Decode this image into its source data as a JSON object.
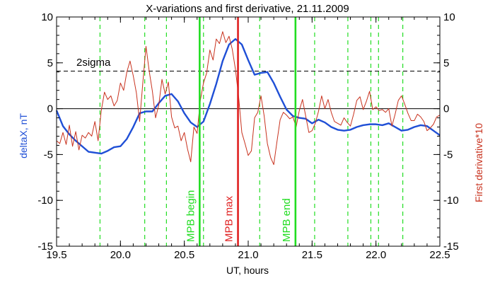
{
  "chart_data": {
    "type": "line",
    "title": "X-variations and first derivative, 21.11.2009",
    "xlabel": "UT, hours",
    "ylabel_left": "deltaX, nT",
    "ylabel_right": "First derivative*10",
    "xlim": [
      19.5,
      22.5
    ],
    "ylim": [
      -15,
      10
    ],
    "xticks": [
      "19.5",
      "20.0",
      "20.5",
      "21.0",
      "21.5",
      "22.0",
      "22.5"
    ],
    "yticks": [
      "-15",
      "-10",
      "-5",
      "0",
      "5",
      "10"
    ],
    "colors": {
      "deltaX": "#1f4fd6",
      "derivative": "#c8321e",
      "markers": "#22dd22",
      "max": "#e02020",
      "axes": "#000000"
    },
    "sigma": {
      "label": "2sigma",
      "value": 4.1
    },
    "zero_line": 0,
    "dashed_markers_x": [
      19.84,
      20.19,
      20.36,
      20.65,
      21.09,
      21.52,
      21.78,
      21.96,
      22.02,
      22.21
    ],
    "markers": [
      {
        "label": "MPB begin",
        "x": 20.62,
        "color": "#22dd22"
      },
      {
        "label": "MPB max",
        "x": 20.92,
        "color": "#e02020"
      },
      {
        "label": "MPB end",
        "x": 21.37,
        "color": "#22dd22"
      }
    ],
    "series": [
      {
        "name": "deltaX, nT",
        "axis": "left",
        "color": "#1f4fd6",
        "x": [
          19.5,
          19.55,
          19.6,
          19.65,
          19.7,
          19.75,
          19.8,
          19.85,
          19.9,
          19.95,
          20.0,
          20.05,
          20.1,
          20.15,
          20.2,
          20.25,
          20.3,
          20.35,
          20.4,
          20.45,
          20.5,
          20.55,
          20.6,
          20.65,
          20.7,
          20.75,
          20.8,
          20.85,
          20.9,
          20.95,
          21.0,
          21.05,
          21.1,
          21.15,
          21.2,
          21.25,
          21.3,
          21.35,
          21.4,
          21.45,
          21.5,
          21.55,
          21.6,
          21.65,
          21.7,
          21.75,
          21.8,
          21.85,
          21.9,
          21.95,
          22.0,
          22.05,
          22.1,
          22.15,
          22.2,
          22.25,
          22.3,
          22.35,
          22.4,
          22.45,
          22.5
        ],
        "values": [
          -0.2,
          -1.9,
          -2.8,
          -3.5,
          -4.1,
          -4.7,
          -4.8,
          -4.9,
          -4.6,
          -4.2,
          -4.1,
          -3.3,
          -2.0,
          -0.5,
          -0.3,
          -0.3,
          0.6,
          1.4,
          1.6,
          0.8,
          -0.5,
          -1.5,
          -2.0,
          -1.4,
          0.5,
          2.7,
          5.2,
          7.0,
          7.6,
          7.0,
          5.3,
          3.7,
          3.9,
          4.0,
          2.8,
          1.3,
          -0.1,
          -0.8,
          -1.0,
          -1.1,
          -1.6,
          -1.2,
          -1.5,
          -2.0,
          -2.3,
          -2.4,
          -2.3,
          -2.0,
          -1.8,
          -1.7,
          -1.7,
          -1.8,
          -1.6,
          -2.0,
          -2.4,
          -2.3,
          -2.0,
          -1.8,
          -1.9,
          -2.4,
          -2.9
        ]
      },
      {
        "name": "First derivative*10",
        "axis": "right",
        "color": "#c8321e",
        "x": [
          19.5,
          19.525,
          19.55,
          19.575,
          19.6,
          19.625,
          19.65,
          19.675,
          19.7,
          19.725,
          19.75,
          19.775,
          19.8,
          19.825,
          19.85,
          19.875,
          19.9,
          19.925,
          19.95,
          19.975,
          20.0,
          20.025,
          20.05,
          20.075,
          20.1,
          20.125,
          20.15,
          20.175,
          20.2,
          20.225,
          20.25,
          20.275,
          20.3,
          20.325,
          20.35,
          20.375,
          20.4,
          20.425,
          20.45,
          20.475,
          20.5,
          20.525,
          20.55,
          20.575,
          20.6,
          20.625,
          20.65,
          20.675,
          20.7,
          20.725,
          20.75,
          20.775,
          20.8,
          20.825,
          20.85,
          20.875,
          20.9,
          20.925,
          20.95,
          20.975,
          21.0,
          21.025,
          21.05,
          21.075,
          21.1,
          21.125,
          21.15,
          21.175,
          21.2,
          21.225,
          21.25,
          21.275,
          21.3,
          21.325,
          21.35,
          21.375,
          21.4,
          21.425,
          21.45,
          21.475,
          21.5,
          21.525,
          21.55,
          21.575,
          21.6,
          21.625,
          21.65,
          21.675,
          21.7,
          21.725,
          21.75,
          21.775,
          21.8,
          21.825,
          21.85,
          21.875,
          21.9,
          21.925,
          21.95,
          21.975,
          22.0,
          22.025,
          22.05,
          22.075,
          22.1,
          22.125,
          22.15,
          22.175,
          22.2,
          22.225,
          22.25,
          22.275,
          22.3,
          22.325,
          22.35,
          22.375,
          22.4,
          22.425,
          22.45,
          22.475,
          22.5
        ],
        "values": [
          -3.5,
          -3.8,
          -2.6,
          -3.9,
          -1.8,
          -4.1,
          -2.5,
          -4.5,
          -2.9,
          -3.2,
          -2.6,
          -3.0,
          -1.4,
          -3.5,
          -0.2,
          1.8,
          1.0,
          1.4,
          0.3,
          0.9,
          2.8,
          2.0,
          4.0,
          5.2,
          3.6,
          1.7,
          -1.4,
          2.8,
          6.8,
          4.1,
          1.9,
          -1.0,
          0.4,
          3.2,
          1.6,
          2.9,
          -0.9,
          -2.1,
          -1.9,
          -3.5,
          -2.6,
          -4.4,
          -5.8,
          -2.0,
          -2.7,
          0.9,
          2.8,
          3.9,
          6.4,
          5.3,
          7.6,
          7.1,
          8.4,
          7.2,
          7.9,
          6.5,
          4.3,
          1.3,
          -2.6,
          -3.8,
          -5.1,
          -4.6,
          -1.0,
          -0.4,
          1.4,
          -0.8,
          -3.8,
          -5.3,
          -6.1,
          -3.6,
          -1.2,
          -0.4,
          -0.7,
          -1.1,
          -0.9,
          -2.0,
          -0.2,
          1.0,
          -0.8,
          -2.6,
          -2.4,
          -1.6,
          -0.3,
          1.4,
          0.0,
          1.0,
          -0.4,
          -1.4,
          -1.6,
          -1.8,
          -1.0,
          -1.5,
          -1.9,
          -0.6,
          0.9,
          1.3,
          -0.1,
          0.8,
          1.9,
          -0.1,
          0.2,
          -0.2,
          -0.1,
          -0.4,
          0.0,
          -1.9,
          -0.6,
          0.9,
          1.4,
          0.5,
          -0.5,
          -1.3,
          -1.3,
          -0.6,
          -0.9,
          -1.4,
          -2.4,
          -2.1,
          -1.7,
          -0.9,
          -0.7
        ]
      }
    ]
  }
}
